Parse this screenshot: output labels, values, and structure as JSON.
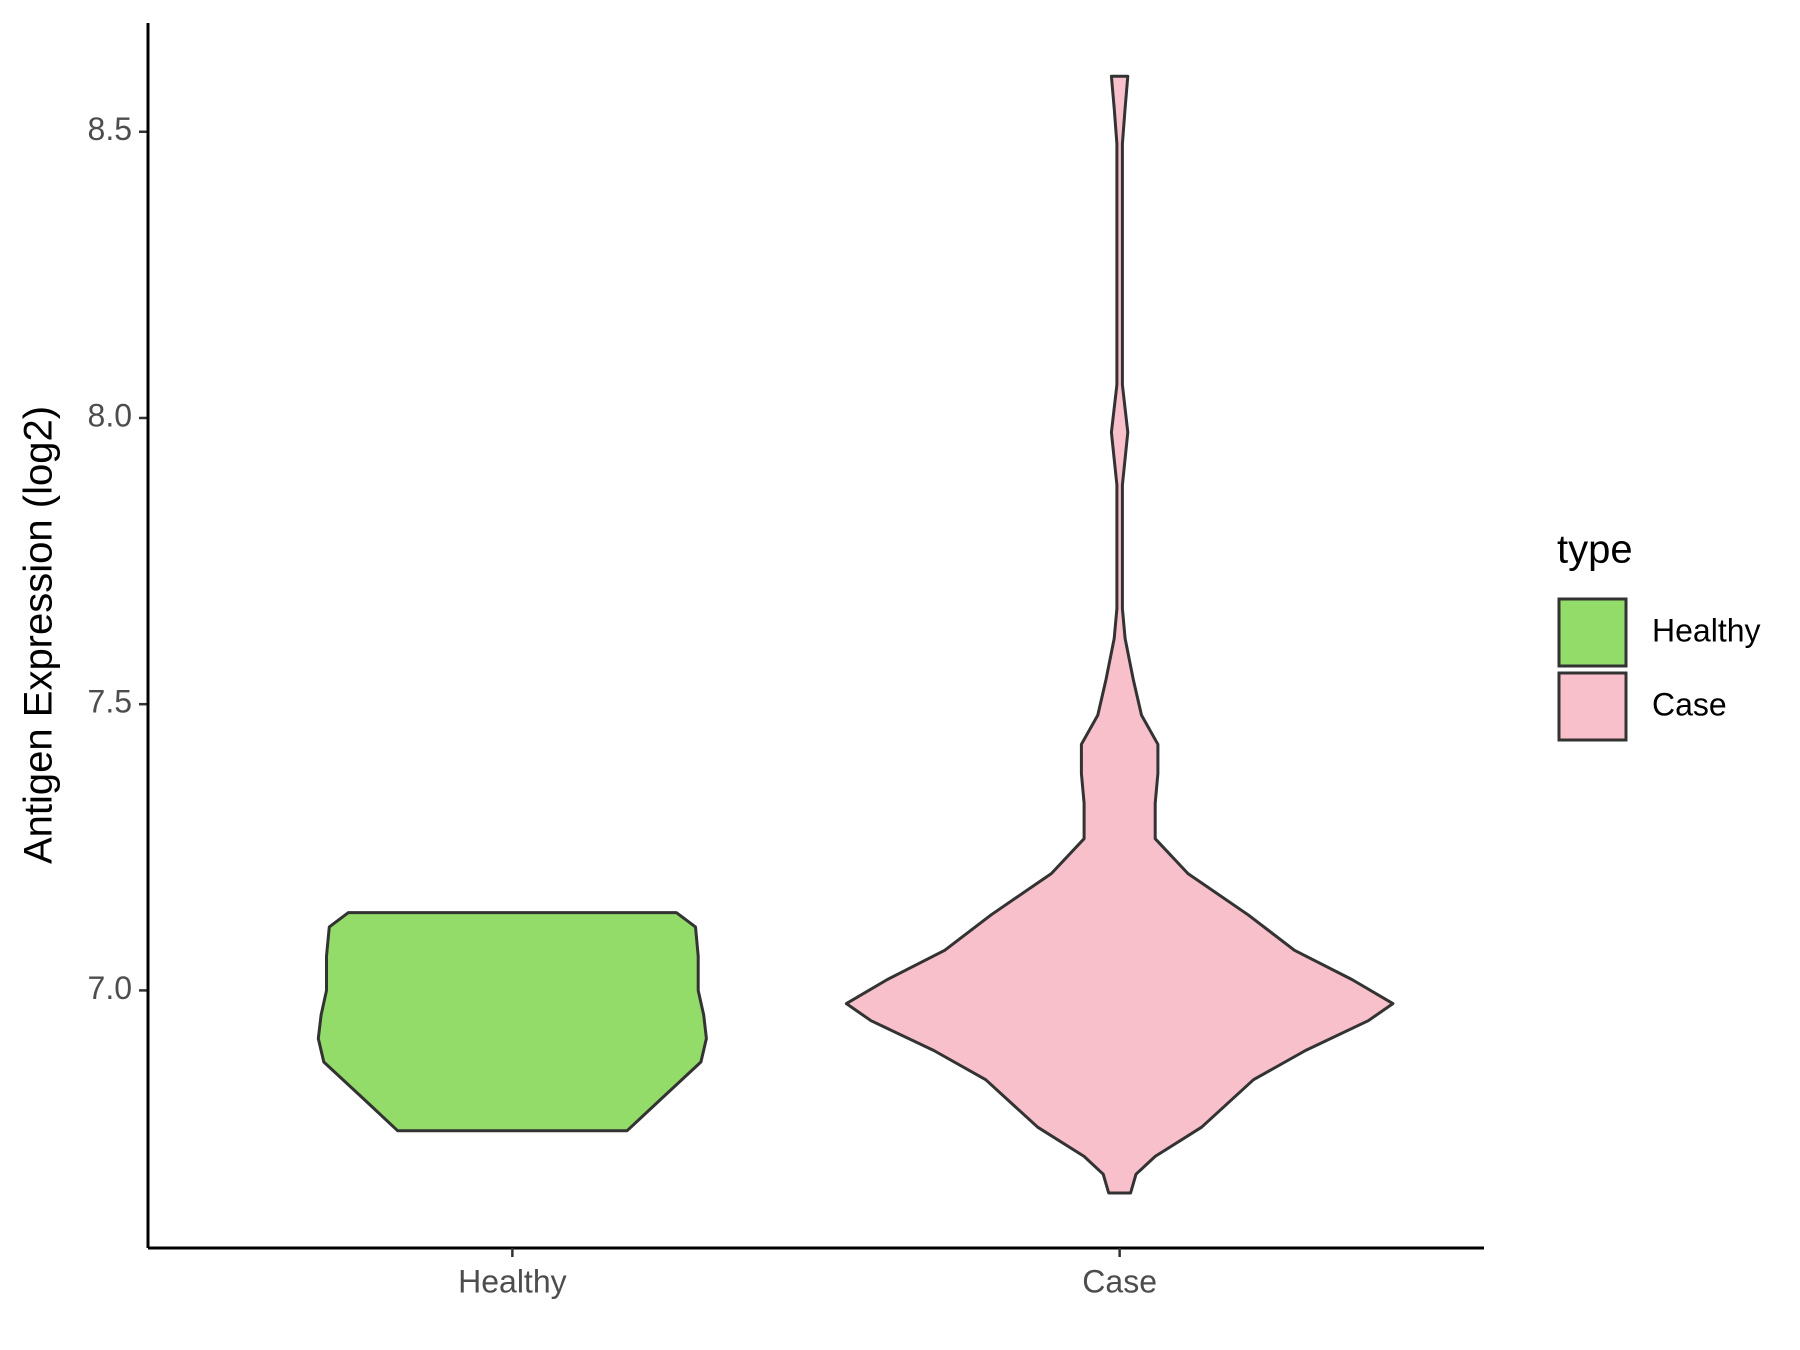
{
  "chart_data": {
    "type": "violin",
    "y_label": "Antigen Expression (log2)",
    "legend_title": "type",
    "categories": [
      "Healthy",
      "Case"
    ],
    "ylim": [
      6.55,
      8.69
    ],
    "yticks": [
      {
        "value": 7.0,
        "label": "7.0"
      },
      {
        "value": 7.5,
        "label": "7.5"
      },
      {
        "value": 8.0,
        "label": "8.0"
      },
      {
        "value": 8.5,
        "label": "8.5"
      }
    ],
    "series": [
      {
        "name": "Healthy",
        "color": "#93dc6a",
        "y": [
          6.755,
          6.813,
          6.875,
          6.916,
          6.957,
          7.0,
          7.06,
          7.111,
          7.136
        ],
        "width": [
          0.42,
          0.55,
          0.69,
          0.71,
          0.7,
          0.68,
          0.68,
          0.67,
          0.6
        ]
      },
      {
        "name": "Case",
        "color": "#f8c0cb",
        "y": [
          6.646,
          6.679,
          6.71,
          6.761,
          6.844,
          6.895,
          6.947,
          6.977,
          7.019,
          7.07,
          7.132,
          7.204,
          7.265,
          7.327,
          7.379,
          7.43,
          7.481,
          7.543,
          7.615,
          7.667,
          7.811,
          7.883,
          7.975,
          8.058,
          8.119,
          8.479,
          8.541,
          8.597
        ],
        "width": [
          0.04,
          0.06,
          0.13,
          0.3,
          0.49,
          0.68,
          0.91,
          1.0,
          0.85,
          0.64,
          0.47,
          0.25,
          0.13,
          0.13,
          0.14,
          0.14,
          0.08,
          0.05,
          0.02,
          0.01,
          0.01,
          0.01,
          0.03,
          0.01,
          0.01,
          0.01,
          0.02,
          0.03
        ]
      }
    ]
  }
}
